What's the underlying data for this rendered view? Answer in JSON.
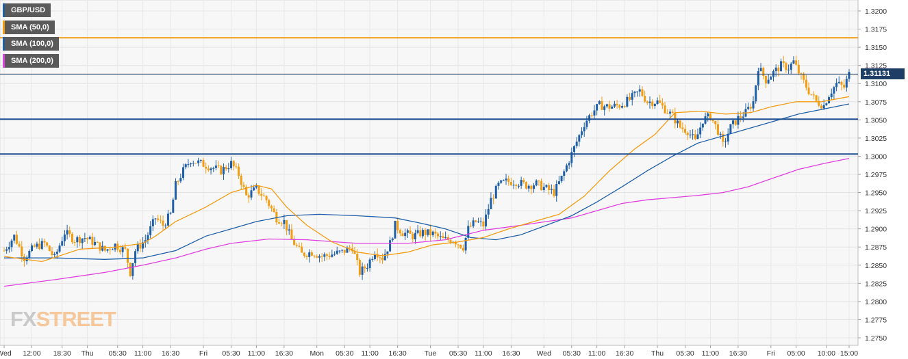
{
  "chart_data": {
    "type": "candlestick",
    "title": "GBP/USD",
    "legend": [
      {
        "label": "GBP/USD",
        "color": "#1f5fa8"
      },
      {
        "label": "SMA (50,0)",
        "color": "#f39c12"
      },
      {
        "label": "SMA (100,0)",
        "color": "#1f5fa8"
      },
      {
        "label": "SMA (200,0)",
        "color": "#e040e0"
      }
    ],
    "y_ticks": [
      "1.3200",
      "1.3175",
      "1.3150",
      "1.3125",
      "1.3100",
      "1.3075",
      "1.3050",
      "1.3025",
      "1.3000",
      "1.2975",
      "1.2950",
      "1.2925",
      "1.2900",
      "1.2875",
      "1.2850",
      "1.2825",
      "1.2800",
      "1.2775",
      "1.2750"
    ],
    "ylim": [
      1.275,
      1.32
    ],
    "x_ticks": [
      "Wed",
      "12:00",
      "18:30",
      "Thu",
      "05:30",
      "11:00",
      "16:30",
      "Fri",
      "05:30",
      "11:00",
      "16:30",
      "Mon",
      "05:30",
      "11:00",
      "16:30",
      "Tue",
      "05:30",
      "11:00",
      "16:30",
      "Wed",
      "05:30",
      "11:00",
      "16:30",
      "Thu",
      "05:30",
      "11:00",
      "16:30",
      "Fri",
      "05:00",
      "10:00",
      "15:00"
    ],
    "x_tick_index": [
      0,
      11,
      23,
      33,
      45,
      55,
      66,
      79,
      90,
      100,
      111,
      124,
      135,
      145,
      156,
      169,
      180,
      190,
      201,
      214,
      225,
      235,
      246,
      259,
      270,
      280,
      291,
      304,
      314,
      326,
      335
    ],
    "current_price_label": "1.31131",
    "current_price": 1.3113,
    "horizontal_levels": [
      {
        "price": 1.3163,
        "color": "#f39c12",
        "style": "resistance"
      },
      {
        "price": 1.3113,
        "color": "#1e3e66",
        "style": "current-price"
      },
      {
        "price": 1.3051,
        "color": "#1e4f91",
        "style": "support"
      },
      {
        "price": 1.3003,
        "color": "#1e4f91",
        "style": "support"
      }
    ],
    "close_path": [
      [
        0,
        1.287
      ],
      [
        4,
        1.289
      ],
      [
        8,
        1.286
      ],
      [
        12,
        1.2875
      ],
      [
        16,
        1.288
      ],
      [
        20,
        1.286
      ],
      [
        24,
        1.2895
      ],
      [
        28,
        1.2885
      ],
      [
        32,
        1.2888
      ],
      [
        36,
        1.288
      ],
      [
        40,
        1.287
      ],
      [
        44,
        1.2878
      ],
      [
        48,
        1.287
      ],
      [
        50,
        1.284
      ],
      [
        52,
        1.287
      ],
      [
        56,
        1.2885
      ],
      [
        60,
        1.2915
      ],
      [
        63,
        1.2905
      ],
      [
        66,
        1.292
      ],
      [
        68,
        1.296
      ],
      [
        71,
        1.298
      ],
      [
        74,
        1.2995
      ],
      [
        78,
        1.299
      ],
      [
        82,
        1.2985
      ],
      [
        86,
        1.298
      ],
      [
        90,
        1.299
      ],
      [
        93,
        1.2975
      ],
      [
        96,
        1.2945
      ],
      [
        100,
        1.2955
      ],
      [
        104,
        1.294
      ],
      [
        108,
        1.2915
      ],
      [
        111,
        1.291
      ],
      [
        114,
        1.2885
      ],
      [
        118,
        1.2865
      ],
      [
        122,
        1.2868
      ],
      [
        126,
        1.2862
      ],
      [
        130,
        1.2865
      ],
      [
        134,
        1.2868
      ],
      [
        138,
        1.2875
      ],
      [
        141,
        1.284
      ],
      [
        144,
        1.285
      ],
      [
        147,
        1.287
      ],
      [
        150,
        1.286
      ],
      [
        153,
        1.288
      ],
      [
        155,
        1.2905
      ],
      [
        158,
        1.2895
      ],
      [
        162,
        1.289
      ],
      [
        166,
        1.2895
      ],
      [
        170,
        1.2893
      ],
      [
        174,
        1.2885
      ],
      [
        178,
        1.2885
      ],
      [
        182,
        1.2875
      ],
      [
        184,
        1.29
      ],
      [
        187,
        1.291
      ],
      [
        190,
        1.2905
      ],
      [
        193,
        1.294
      ],
      [
        196,
        1.296
      ],
      [
        199,
        1.2965
      ],
      [
        203,
        1.2965
      ],
      [
        207,
        1.296
      ],
      [
        211,
        1.2962
      ],
      [
        215,
        1.2955
      ],
      [
        218,
        1.295
      ],
      [
        221,
        1.297
      ],
      [
        224,
        1.2995
      ],
      [
        227,
        1.302
      ],
      [
        230,
        1.3045
      ],
      [
        233,
        1.306
      ],
      [
        236,
        1.307
      ],
      [
        240,
        1.3068
      ],
      [
        244,
        1.307
      ],
      [
        248,
        1.3078
      ],
      [
        252,
        1.309
      ],
      [
        255,
        1.3075
      ],
      [
        259,
        1.3075
      ],
      [
        262,
        1.3065
      ],
      [
        265,
        1.3055
      ],
      [
        268,
        1.304
      ],
      [
        271,
        1.3035
      ],
      [
        274,
        1.302
      ],
      [
        277,
        1.305
      ],
      [
        280,
        1.3055
      ],
      [
        283,
        1.3035
      ],
      [
        285,
        1.3015
      ],
      [
        288,
        1.304
      ],
      [
        291,
        1.3052
      ],
      [
        294,
        1.306
      ],
      [
        297,
        1.3075
      ],
      [
        299,
        1.3123
      ],
      [
        302,
        1.3105
      ],
      [
        305,
        1.3115
      ],
      [
        308,
        1.3125
      ],
      [
        311,
        1.3122
      ],
      [
        313,
        1.313
      ],
      [
        316,
        1.3108
      ],
      [
        319,
        1.309
      ],
      [
        322,
        1.3075
      ],
      [
        325,
        1.307
      ],
      [
        327,
        1.3085
      ],
      [
        330,
        1.31
      ],
      [
        333,
        1.3095
      ],
      [
        335,
        1.3113
      ]
    ],
    "sma50": [
      [
        0,
        1.2862
      ],
      [
        15,
        1.2855
      ],
      [
        30,
        1.2872
      ],
      [
        45,
        1.2875
      ],
      [
        55,
        1.288
      ],
      [
        60,
        1.289
      ],
      [
        68,
        1.291
      ],
      [
        80,
        1.293
      ],
      [
        90,
        1.295
      ],
      [
        100,
        1.296
      ],
      [
        106,
        1.2955
      ],
      [
        112,
        1.293
      ],
      [
        120,
        1.2905
      ],
      [
        130,
        1.2882
      ],
      [
        140,
        1.2868
      ],
      [
        150,
        1.2863
      ],
      [
        160,
        1.2868
      ],
      [
        170,
        1.2878
      ],
      [
        180,
        1.2882
      ],
      [
        190,
        1.2888
      ],
      [
        200,
        1.29
      ],
      [
        210,
        1.291
      ],
      [
        220,
        1.292
      ],
      [
        230,
        1.2945
      ],
      [
        240,
        1.298
      ],
      [
        250,
        1.301
      ],
      [
        258,
        1.303
      ],
      [
        266,
        1.306
      ],
      [
        276,
        1.3062
      ],
      [
        286,
        1.3058
      ],
      [
        296,
        1.306
      ],
      [
        304,
        1.3068
      ],
      [
        314,
        1.3075
      ],
      [
        324,
        1.3075
      ],
      [
        335,
        1.3082
      ]
    ],
    "sma100": [
      [
        0,
        1.286
      ],
      [
        20,
        1.286
      ],
      [
        40,
        1.2858
      ],
      [
        55,
        1.286
      ],
      [
        68,
        1.287
      ],
      [
        80,
        1.289
      ],
      [
        90,
        1.29
      ],
      [
        100,
        1.291
      ],
      [
        112,
        1.2918
      ],
      [
        125,
        1.292
      ],
      [
        140,
        1.2918
      ],
      [
        155,
        1.2915
      ],
      [
        165,
        1.2908
      ],
      [
        175,
        1.29
      ],
      [
        185,
        1.2888
      ],
      [
        195,
        1.2885
      ],
      [
        205,
        1.2892
      ],
      [
        215,
        1.2905
      ],
      [
        225,
        1.2918
      ],
      [
        235,
        1.2937
      ],
      [
        245,
        1.2958
      ],
      [
        255,
        1.298
      ],
      [
        265,
        1.3
      ],
      [
        275,
        1.3018
      ],
      [
        285,
        1.3028
      ],
      [
        295,
        1.3038
      ],
      [
        305,
        1.3048
      ],
      [
        315,
        1.3058
      ],
      [
        325,
        1.3065
      ],
      [
        335,
        1.3072
      ]
    ],
    "sma200": [
      [
        0,
        1.2821
      ],
      [
        20,
        1.283
      ],
      [
        40,
        1.284
      ],
      [
        55,
        1.285
      ],
      [
        68,
        1.286
      ],
      [
        80,
        1.2872
      ],
      [
        90,
        1.288
      ],
      [
        105,
        1.2886
      ],
      [
        120,
        1.2885
      ],
      [
        140,
        1.288
      ],
      [
        160,
        1.288
      ],
      [
        175,
        1.2885
      ],
      [
        190,
        1.2898
      ],
      [
        205,
        1.2905
      ],
      [
        215,
        1.291
      ],
      [
        225,
        1.2915
      ],
      [
        235,
        1.2925
      ],
      [
        245,
        1.2935
      ],
      [
        255,
        1.294
      ],
      [
        265,
        1.2943
      ],
      [
        275,
        1.2946
      ],
      [
        285,
        1.295
      ],
      [
        295,
        1.2958
      ],
      [
        305,
        1.297
      ],
      [
        315,
        1.2982
      ],
      [
        325,
        1.299
      ],
      [
        335,
        1.2997
      ]
    ],
    "candle_count": 336,
    "grid": true
  },
  "logo": {
    "part1": "FX",
    "part2": "STREET"
  }
}
